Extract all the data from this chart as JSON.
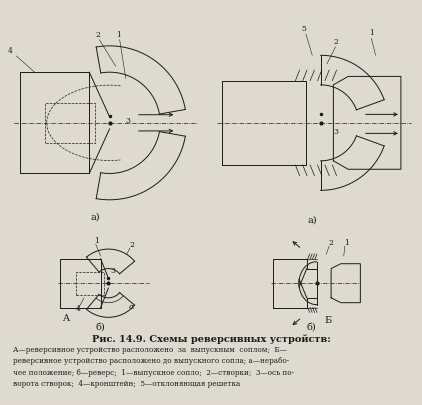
{
  "title": "Рис. 14.9. Схемы реверсивных устройств:",
  "caption_line1": "А—реверсивное устройство расположено  за  выпускным  соплом;  Б—",
  "caption_line2": "реверсивное устройство расположено до выпускного сопла; а—нерабо-",
  "caption_line3": "чее положение; б—реверс;  1—выпускное сопло;  2—створки;  3—ось по-",
  "caption_line4": "ворота створок;  4—кронштейн;  5—отклоняющая решетка",
  "bg_color": "#dedad0",
  "line_color": "#1a1a1a",
  "fig_width": 4.22,
  "fig_height": 4.06,
  "dpi": 100
}
